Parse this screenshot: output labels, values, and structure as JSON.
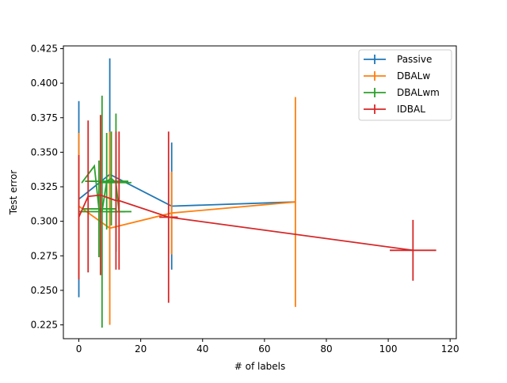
{
  "chart_data": {
    "type": "line",
    "subtype": "errorbar",
    "title": "",
    "xlabel": "# of labels",
    "ylabel": "Test error",
    "xlim": [
      -5,
      122
    ],
    "ylim": [
      0.215,
      0.427
    ],
    "xticks": [
      0,
      20,
      40,
      60,
      80,
      100,
      120
    ],
    "yticks": [
      0.225,
      0.25,
      0.275,
      0.3,
      0.325,
      0.35,
      0.375,
      0.4,
      0.425
    ],
    "xtick_labels": [
      "0",
      "20",
      "40",
      "60",
      "80",
      "100",
      "120"
    ],
    "ytick_labels": [
      "0.225",
      "0.250",
      "0.275",
      "0.300",
      "0.325",
      "0.350",
      "0.375",
      "0.400",
      "0.425"
    ],
    "grid": false,
    "legend_position": "top-right",
    "series": [
      {
        "name": "Passive",
        "color": "#1f77b4",
        "x": [
          0,
          10,
          30,
          70
        ],
        "y": [
          0.316,
          0.334,
          0.311,
          0.314
        ],
        "yerr": [
          0.071,
          0.084,
          0.046,
          0.0
        ],
        "xerr": [
          0,
          0,
          0,
          0
        ]
      },
      {
        "name": "DBALw",
        "color": "#ff7f0e",
        "x": [
          0,
          10,
          30,
          70
        ],
        "y": [
          0.311,
          0.295,
          0.306,
          0.314
        ],
        "yerr": [
          0.053,
          0.07,
          0.03,
          0.076
        ],
        "xerr": [
          0,
          0,
          0,
          0
        ]
      },
      {
        "name": "DBALwm",
        "color": "#2ca02c",
        "x": [
          1,
          5,
          6.5,
          7.5,
          9,
          10.5,
          12,
          13
        ],
        "y": [
          0.328,
          0.34,
          0.309,
          0.307,
          0.329,
          0.331,
          0.328,
          0.307
        ],
        "yerr": [
          0.0,
          0.0,
          0.035,
          0.084,
          0.035,
          0.034,
          0.05,
          0.0
        ],
        "xerr": [
          0,
          0,
          5.5,
          7.5,
          7.0,
          0,
          5.0,
          4.0
        ]
      },
      {
        "name": "IDBAL",
        "color": "#d62728",
        "x": [
          0,
          3,
          7,
          12,
          13,
          29,
          108
        ],
        "y": [
          0.303,
          0.318,
          0.319,
          0.315,
          0.315,
          0.303,
          0.279
        ],
        "yerr": [
          0.045,
          0.055,
          0.058,
          0.05,
          0.05,
          0.062,
          0.022
        ],
        "xerr": [
          0,
          0,
          0,
          0,
          0,
          3.0,
          7.5
        ]
      }
    ]
  }
}
